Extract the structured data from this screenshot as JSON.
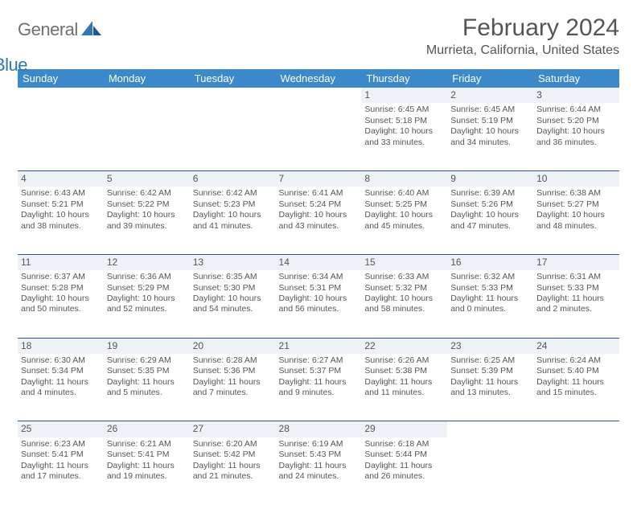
{
  "logo": {
    "word1": "General",
    "word2": "Blue"
  },
  "title": "February 2024",
  "subtitle": "Murrieta, California, United States",
  "header_bg": "#3b89c9",
  "daynum_bg": "#eef2f6",
  "border_color": "#2c5a85",
  "days_of_week": [
    "Sunday",
    "Monday",
    "Tuesday",
    "Wednesday",
    "Thursday",
    "Friday",
    "Saturday"
  ],
  "weeks": [
    {
      "nums": [
        "",
        "",
        "",
        "",
        "1",
        "2",
        "3"
      ],
      "cells": [
        null,
        null,
        null,
        null,
        {
          "sunrise": "Sunrise: 6:45 AM",
          "sunset": "Sunset: 5:18 PM",
          "day1": "Daylight: 10 hours",
          "day2": "and 33 minutes."
        },
        {
          "sunrise": "Sunrise: 6:45 AM",
          "sunset": "Sunset: 5:19 PM",
          "day1": "Daylight: 10 hours",
          "day2": "and 34 minutes."
        },
        {
          "sunrise": "Sunrise: 6:44 AM",
          "sunset": "Sunset: 5:20 PM",
          "day1": "Daylight: 10 hours",
          "day2": "and 36 minutes."
        }
      ]
    },
    {
      "nums": [
        "4",
        "5",
        "6",
        "7",
        "8",
        "9",
        "10"
      ],
      "cells": [
        {
          "sunrise": "Sunrise: 6:43 AM",
          "sunset": "Sunset: 5:21 PM",
          "day1": "Daylight: 10 hours",
          "day2": "and 38 minutes."
        },
        {
          "sunrise": "Sunrise: 6:42 AM",
          "sunset": "Sunset: 5:22 PM",
          "day1": "Daylight: 10 hours",
          "day2": "and 39 minutes."
        },
        {
          "sunrise": "Sunrise: 6:42 AM",
          "sunset": "Sunset: 5:23 PM",
          "day1": "Daylight: 10 hours",
          "day2": "and 41 minutes."
        },
        {
          "sunrise": "Sunrise: 6:41 AM",
          "sunset": "Sunset: 5:24 PM",
          "day1": "Daylight: 10 hours",
          "day2": "and 43 minutes."
        },
        {
          "sunrise": "Sunrise: 6:40 AM",
          "sunset": "Sunset: 5:25 PM",
          "day1": "Daylight: 10 hours",
          "day2": "and 45 minutes."
        },
        {
          "sunrise": "Sunrise: 6:39 AM",
          "sunset": "Sunset: 5:26 PM",
          "day1": "Daylight: 10 hours",
          "day2": "and 47 minutes."
        },
        {
          "sunrise": "Sunrise: 6:38 AM",
          "sunset": "Sunset: 5:27 PM",
          "day1": "Daylight: 10 hours",
          "day2": "and 48 minutes."
        }
      ]
    },
    {
      "nums": [
        "11",
        "12",
        "13",
        "14",
        "15",
        "16",
        "17"
      ],
      "cells": [
        {
          "sunrise": "Sunrise: 6:37 AM",
          "sunset": "Sunset: 5:28 PM",
          "day1": "Daylight: 10 hours",
          "day2": "and 50 minutes."
        },
        {
          "sunrise": "Sunrise: 6:36 AM",
          "sunset": "Sunset: 5:29 PM",
          "day1": "Daylight: 10 hours",
          "day2": "and 52 minutes."
        },
        {
          "sunrise": "Sunrise: 6:35 AM",
          "sunset": "Sunset: 5:30 PM",
          "day1": "Daylight: 10 hours",
          "day2": "and 54 minutes."
        },
        {
          "sunrise": "Sunrise: 6:34 AM",
          "sunset": "Sunset: 5:31 PM",
          "day1": "Daylight: 10 hours",
          "day2": "and 56 minutes."
        },
        {
          "sunrise": "Sunrise: 6:33 AM",
          "sunset": "Sunset: 5:32 PM",
          "day1": "Daylight: 10 hours",
          "day2": "and 58 minutes."
        },
        {
          "sunrise": "Sunrise: 6:32 AM",
          "sunset": "Sunset: 5:33 PM",
          "day1": "Daylight: 11 hours",
          "day2": "and 0 minutes."
        },
        {
          "sunrise": "Sunrise: 6:31 AM",
          "sunset": "Sunset: 5:33 PM",
          "day1": "Daylight: 11 hours",
          "day2": "and 2 minutes."
        }
      ]
    },
    {
      "nums": [
        "18",
        "19",
        "20",
        "21",
        "22",
        "23",
        "24"
      ],
      "cells": [
        {
          "sunrise": "Sunrise: 6:30 AM",
          "sunset": "Sunset: 5:34 PM",
          "day1": "Daylight: 11 hours",
          "day2": "and 4 minutes."
        },
        {
          "sunrise": "Sunrise: 6:29 AM",
          "sunset": "Sunset: 5:35 PM",
          "day1": "Daylight: 11 hours",
          "day2": "and 5 minutes."
        },
        {
          "sunrise": "Sunrise: 6:28 AM",
          "sunset": "Sunset: 5:36 PM",
          "day1": "Daylight: 11 hours",
          "day2": "and 7 minutes."
        },
        {
          "sunrise": "Sunrise: 6:27 AM",
          "sunset": "Sunset: 5:37 PM",
          "day1": "Daylight: 11 hours",
          "day2": "and 9 minutes."
        },
        {
          "sunrise": "Sunrise: 6:26 AM",
          "sunset": "Sunset: 5:38 PM",
          "day1": "Daylight: 11 hours",
          "day2": "and 11 minutes."
        },
        {
          "sunrise": "Sunrise: 6:25 AM",
          "sunset": "Sunset: 5:39 PM",
          "day1": "Daylight: 11 hours",
          "day2": "and 13 minutes."
        },
        {
          "sunrise": "Sunrise: 6:24 AM",
          "sunset": "Sunset: 5:40 PM",
          "day1": "Daylight: 11 hours",
          "day2": "and 15 minutes."
        }
      ]
    },
    {
      "nums": [
        "25",
        "26",
        "27",
        "28",
        "29",
        "",
        ""
      ],
      "cells": [
        {
          "sunrise": "Sunrise: 6:23 AM",
          "sunset": "Sunset: 5:41 PM",
          "day1": "Daylight: 11 hours",
          "day2": "and 17 minutes."
        },
        {
          "sunrise": "Sunrise: 6:21 AM",
          "sunset": "Sunset: 5:41 PM",
          "day1": "Daylight: 11 hours",
          "day2": "and 19 minutes."
        },
        {
          "sunrise": "Sunrise: 6:20 AM",
          "sunset": "Sunset: 5:42 PM",
          "day1": "Daylight: 11 hours",
          "day2": "and 21 minutes."
        },
        {
          "sunrise": "Sunrise: 6:19 AM",
          "sunset": "Sunset: 5:43 PM",
          "day1": "Daylight: 11 hours",
          "day2": "and 24 minutes."
        },
        {
          "sunrise": "Sunrise: 6:18 AM",
          "sunset": "Sunset: 5:44 PM",
          "day1": "Daylight: 11 hours",
          "day2": "and 26 minutes."
        },
        null,
        null
      ]
    }
  ]
}
